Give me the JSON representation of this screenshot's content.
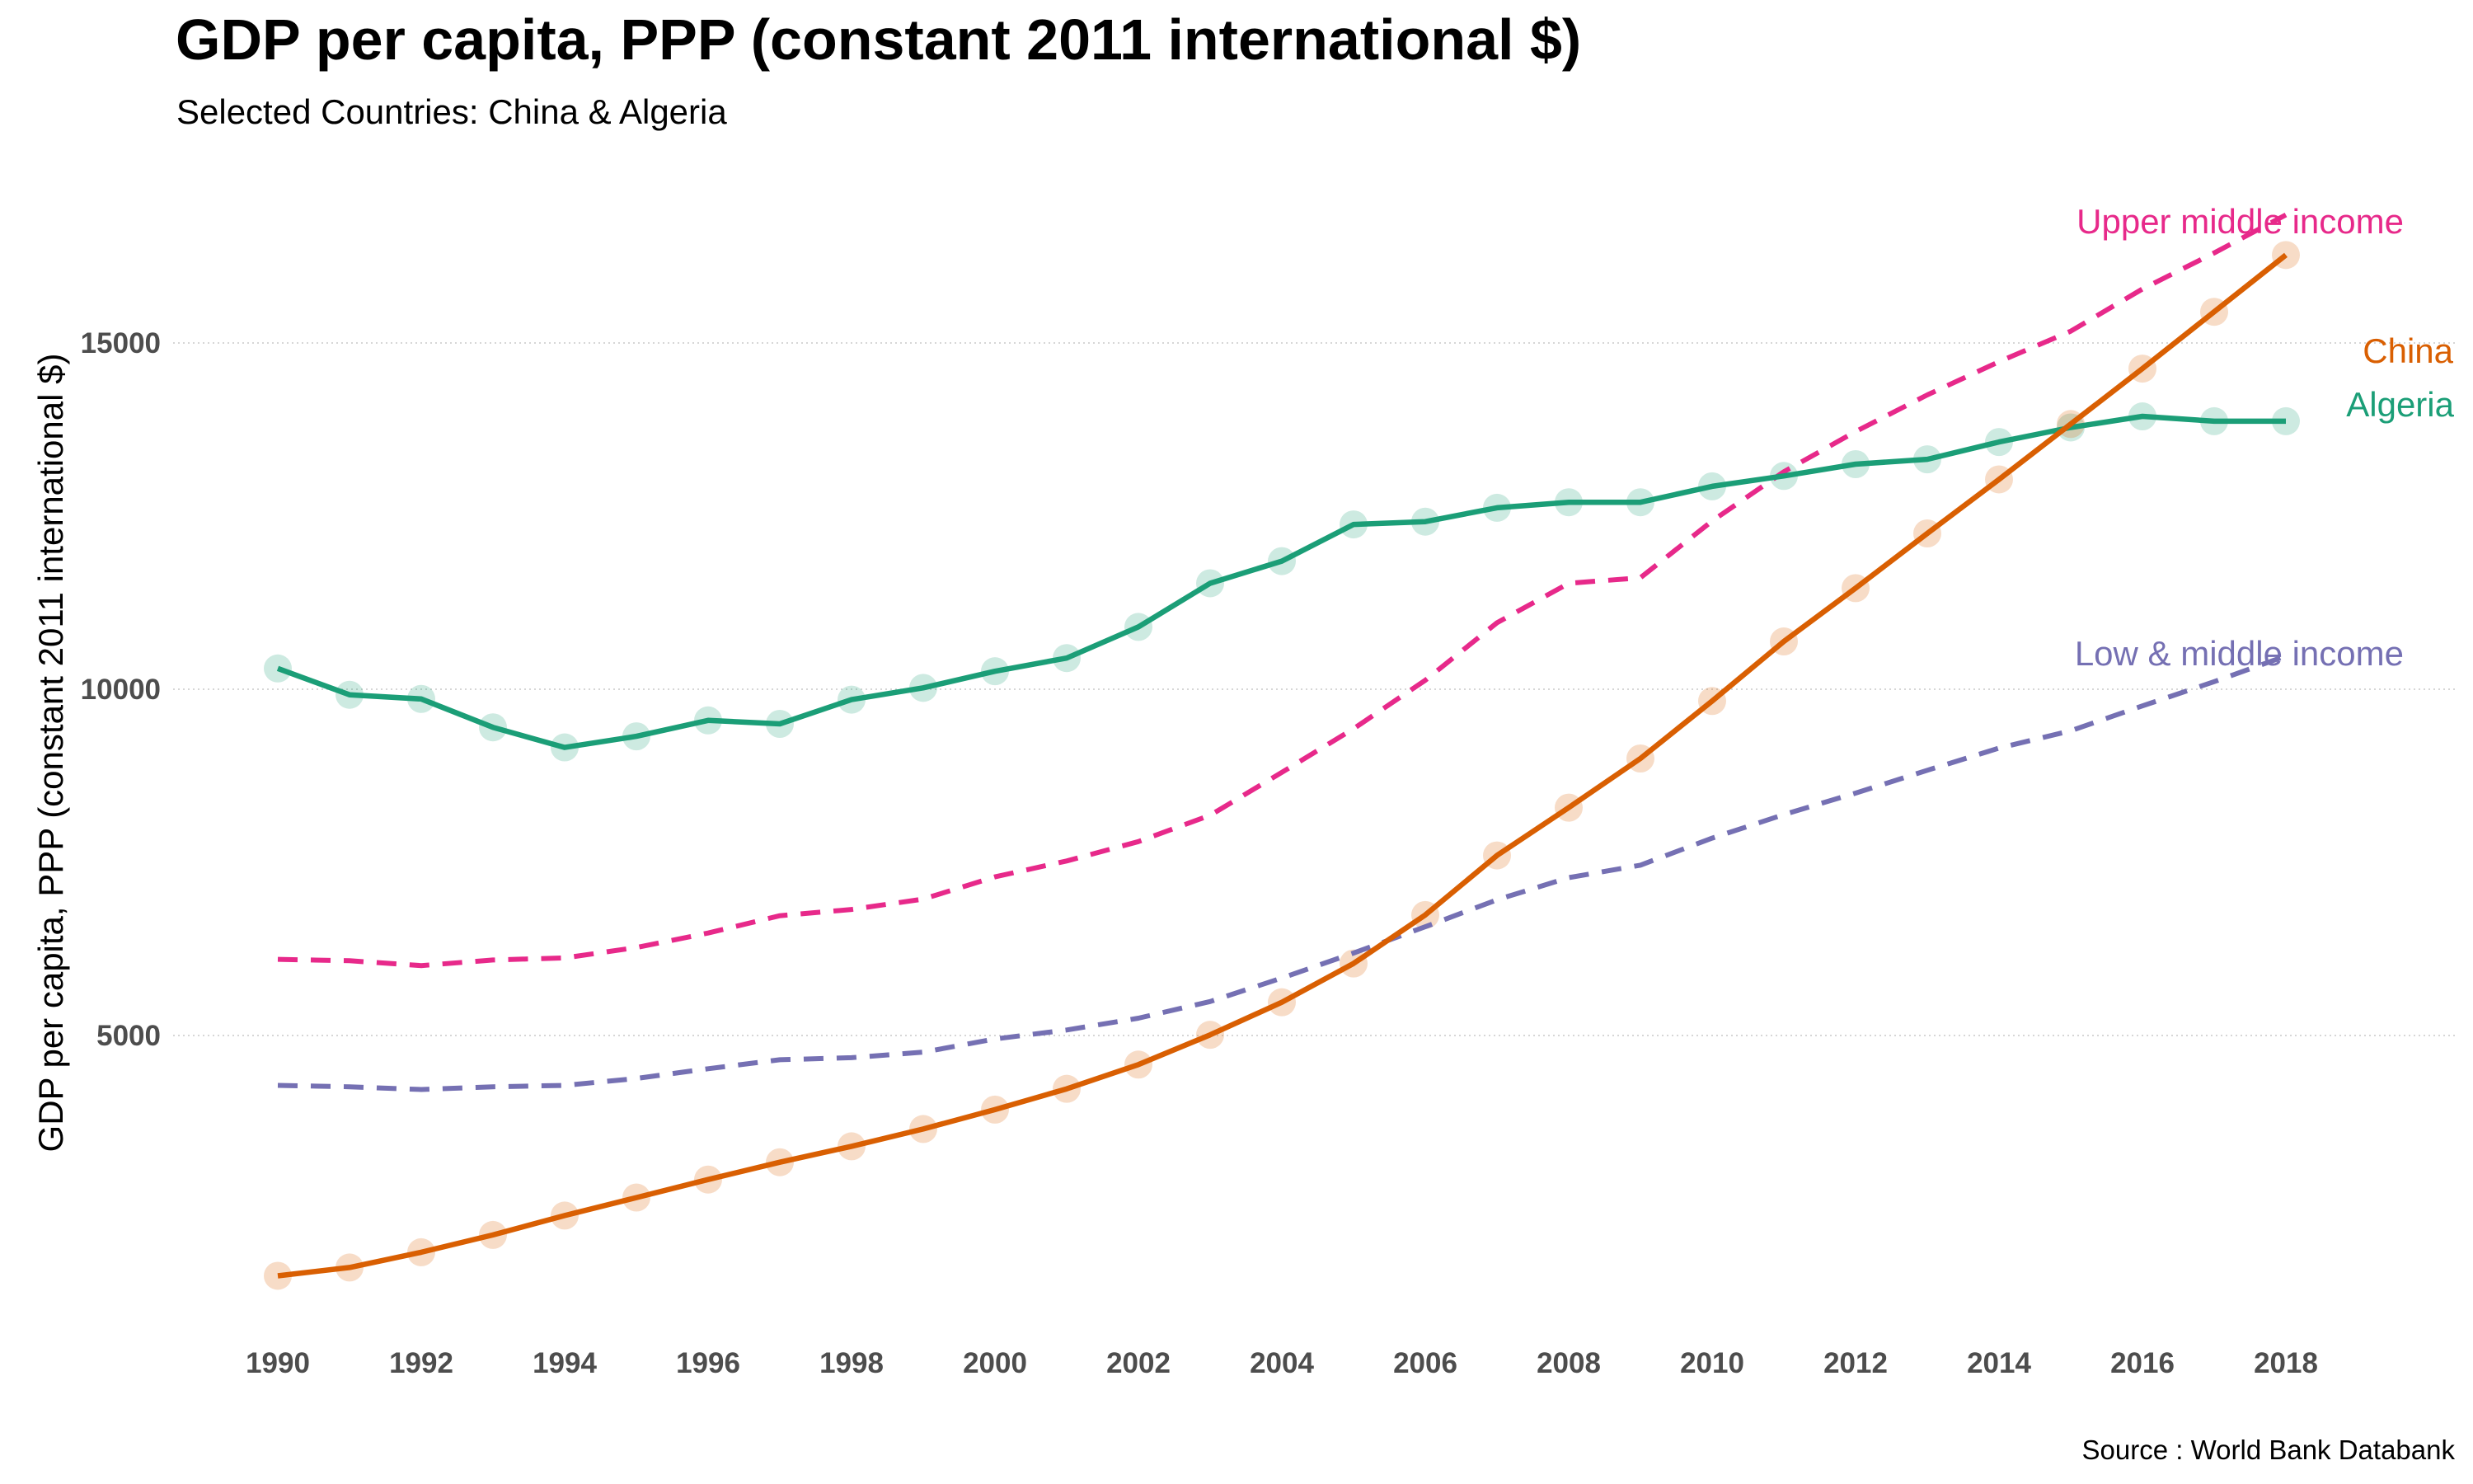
{
  "title": "GDP per capita, PPP (constant 2011 international $)",
  "subtitle": "Selected Countries: China & Algeria",
  "caption": "Source : World Bank Databank",
  "chart_data": {
    "type": "line",
    "title": "GDP per capita, PPP (constant 2011 international $)",
    "subtitle": "Selected Countries: China & Algeria",
    "xlabel": "",
    "ylabel": "GDP per capita, PPP (constant 2011 international $)",
    "xlim": [
      1990,
      2018
    ],
    "ylim": [
      1500,
      17200
    ],
    "xticks": [
      1990,
      1992,
      1994,
      1996,
      1998,
      2000,
      2002,
      2004,
      2006,
      2008,
      2010,
      2012,
      2014,
      2016,
      2018
    ],
    "yticks": [
      5000,
      10000,
      15000
    ],
    "grid": "horizontal dotted",
    "legend": "direct labels at line ends",
    "x": [
      1990,
      1991,
      1992,
      1993,
      1994,
      1995,
      1996,
      1997,
      1998,
      1999,
      2000,
      2001,
      2002,
      2003,
      2004,
      2005,
      2006,
      2007,
      2008,
      2009,
      2010,
      2011,
      2012,
      2013,
      2014,
      2015,
      2016,
      2017,
      2018
    ],
    "series": [
      {
        "name": "Algeria",
        "label": "Algeria",
        "color": "#1b9e77",
        "style": "solid",
        "markers": true,
        "values": [
          10300,
          9920,
          9860,
          9450,
          9160,
          9320,
          9550,
          9500,
          9850,
          10020,
          10260,
          10450,
          10900,
          11530,
          11850,
          12380,
          12420,
          12620,
          12700,
          12700,
          12930,
          13080,
          13250,
          13320,
          13570,
          13780,
          13940,
          13870,
          13870
        ]
      },
      {
        "name": "China",
        "label": "China",
        "color": "#d95f02",
        "style": "solid",
        "markers": true,
        "values": [
          1530,
          1650,
          1870,
          2120,
          2400,
          2660,
          2920,
          3170,
          3400,
          3650,
          3930,
          4230,
          4580,
          5010,
          5480,
          6040,
          6740,
          7600,
          8290,
          9000,
          9830,
          10690,
          11460,
          12250,
          13030,
          13830,
          14630,
          15450,
          16270
        ]
      },
      {
        "name": "Upper middle income",
        "label": "Upper middle income",
        "color": "#e7298a",
        "style": "dashed",
        "markers": false,
        "values": [
          6100,
          6080,
          6010,
          6090,
          6120,
          6270,
          6480,
          6730,
          6820,
          6970,
          7290,
          7520,
          7800,
          8180,
          8800,
          9430,
          10130,
          10960,
          11530,
          11610,
          12430,
          13140,
          13720,
          14250,
          14730,
          15170,
          15780,
          16300,
          16850
        ]
      },
      {
        "name": "Low & middle income",
        "label": "Low & middle income",
        "color": "#7570b3",
        "style": "dashed",
        "markers": false,
        "values": [
          4280,
          4260,
          4220,
          4260,
          4280,
          4380,
          4520,
          4650,
          4680,
          4760,
          4950,
          5080,
          5250,
          5490,
          5830,
          6190,
          6570,
          6960,
          7280,
          7460,
          7850,
          8190,
          8500,
          8830,
          9150,
          9400,
          9760,
          10110,
          10480
        ]
      }
    ]
  }
}
